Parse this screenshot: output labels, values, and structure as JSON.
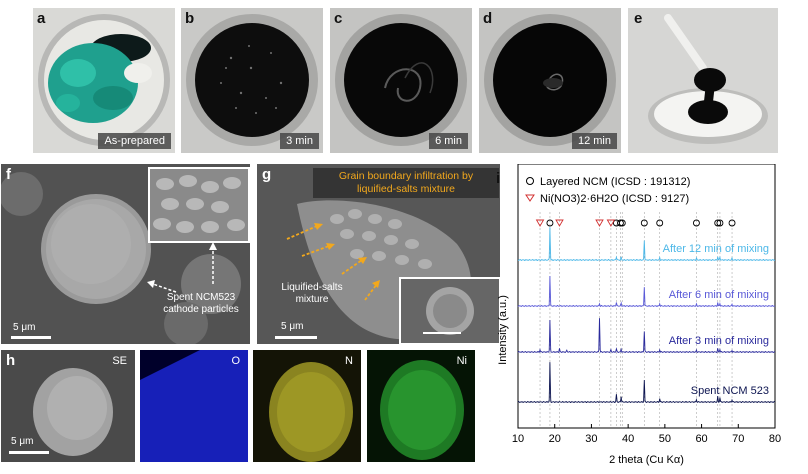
{
  "panels": {
    "a": {
      "label": "a",
      "caption": "As-prepared"
    },
    "b": {
      "label": "b",
      "caption": "3 min"
    },
    "c": {
      "label": "c",
      "caption": "6 min"
    },
    "d": {
      "label": "d",
      "caption": "12 min"
    },
    "e": {
      "label": "e"
    },
    "f": {
      "label": "f",
      "scale": "5 μm",
      "annotation_line1": "Spent NCM523",
      "annotation_line2": "cathode particles"
    },
    "g": {
      "label": "g",
      "title_line1": "Grain boundary infiltration by",
      "title_line2": "liquified-salts mixture",
      "annotation_line1": "Liquified-salts",
      "annotation_line2": "mixture",
      "scale": "5 μm"
    },
    "h": {
      "label": "h",
      "se": "SE",
      "o": "O",
      "n": "N",
      "ni": "Ni",
      "scale": "5 μm"
    },
    "i": {
      "label": "i"
    }
  },
  "colors": {
    "orange_arrow": "#f2a81d",
    "blue_map": "#1a24c8",
    "yellow_map": "#c8c030",
    "green_map": "#2ea535"
  },
  "chart_data": {
    "type": "line",
    "xlabel": "2 theta (Cu Kα)",
    "ylabel": "Intensity (a.u.)",
    "xlim": [
      10,
      80
    ],
    "x_ticks": [
      10,
      20,
      30,
      40,
      50,
      60,
      70,
      80
    ],
    "legend": [
      {
        "marker": "circle",
        "label": "Layered NCM  (ICSD : 191312)"
      },
      {
        "marker": "triangle",
        "label": "Ni(NO3)2·6H2O (ICSD : 9127)"
      }
    ],
    "ncm_peaks": [
      18.7,
      36.8,
      37.9,
      38.4,
      44.4,
      48.6,
      58.6,
      64.4,
      65.0,
      68.3
    ],
    "nitrate_peaks": [
      16.0,
      21.3,
      32.2,
      35.3
    ],
    "series": [
      {
        "name": "After 12 min of mixing",
        "color": "#4db8e8",
        "peaks": [
          [
            18.7,
            60
          ],
          [
            36.8,
            6
          ],
          [
            38.1,
            5
          ],
          [
            44.4,
            36
          ],
          [
            48.6,
            4
          ],
          [
            58.6,
            3
          ],
          [
            64.4,
            6
          ],
          [
            65.0,
            5
          ],
          [
            68.3,
            3
          ]
        ]
      },
      {
        "name": "After 6 min of mixing",
        "color": "#5a5ad8",
        "peaks": [
          [
            18.7,
            55
          ],
          [
            32.2,
            4
          ],
          [
            36.8,
            7
          ],
          [
            38.1,
            5
          ],
          [
            44.4,
            35
          ],
          [
            48.6,
            4
          ],
          [
            58.6,
            3
          ],
          [
            64.4,
            6
          ],
          [
            65.0,
            5
          ],
          [
            68.3,
            3
          ]
        ]
      },
      {
        "name": "After 3 min of mixing",
        "color": "#2a2a9c",
        "peaks": [
          [
            16.0,
            4
          ],
          [
            18.7,
            58
          ],
          [
            21.3,
            6
          ],
          [
            23.3,
            3
          ],
          [
            32.2,
            62
          ],
          [
            35.3,
            4
          ],
          [
            36.8,
            6
          ],
          [
            38.1,
            5
          ],
          [
            44.4,
            38
          ],
          [
            48.6,
            4
          ],
          [
            58.6,
            3
          ],
          [
            64.4,
            6
          ],
          [
            65.0,
            5
          ],
          [
            68.3,
            3
          ]
        ]
      },
      {
        "name": "Spent NCM 523",
        "color": "#0c1450",
        "peaks": [
          [
            18.7,
            72
          ],
          [
            36.8,
            14
          ],
          [
            38.1,
            10
          ],
          [
            44.4,
            40
          ],
          [
            48.6,
            6
          ],
          [
            58.6,
            4
          ],
          [
            64.4,
            10
          ],
          [
            65.0,
            8
          ],
          [
            68.3,
            4
          ]
        ]
      }
    ]
  }
}
